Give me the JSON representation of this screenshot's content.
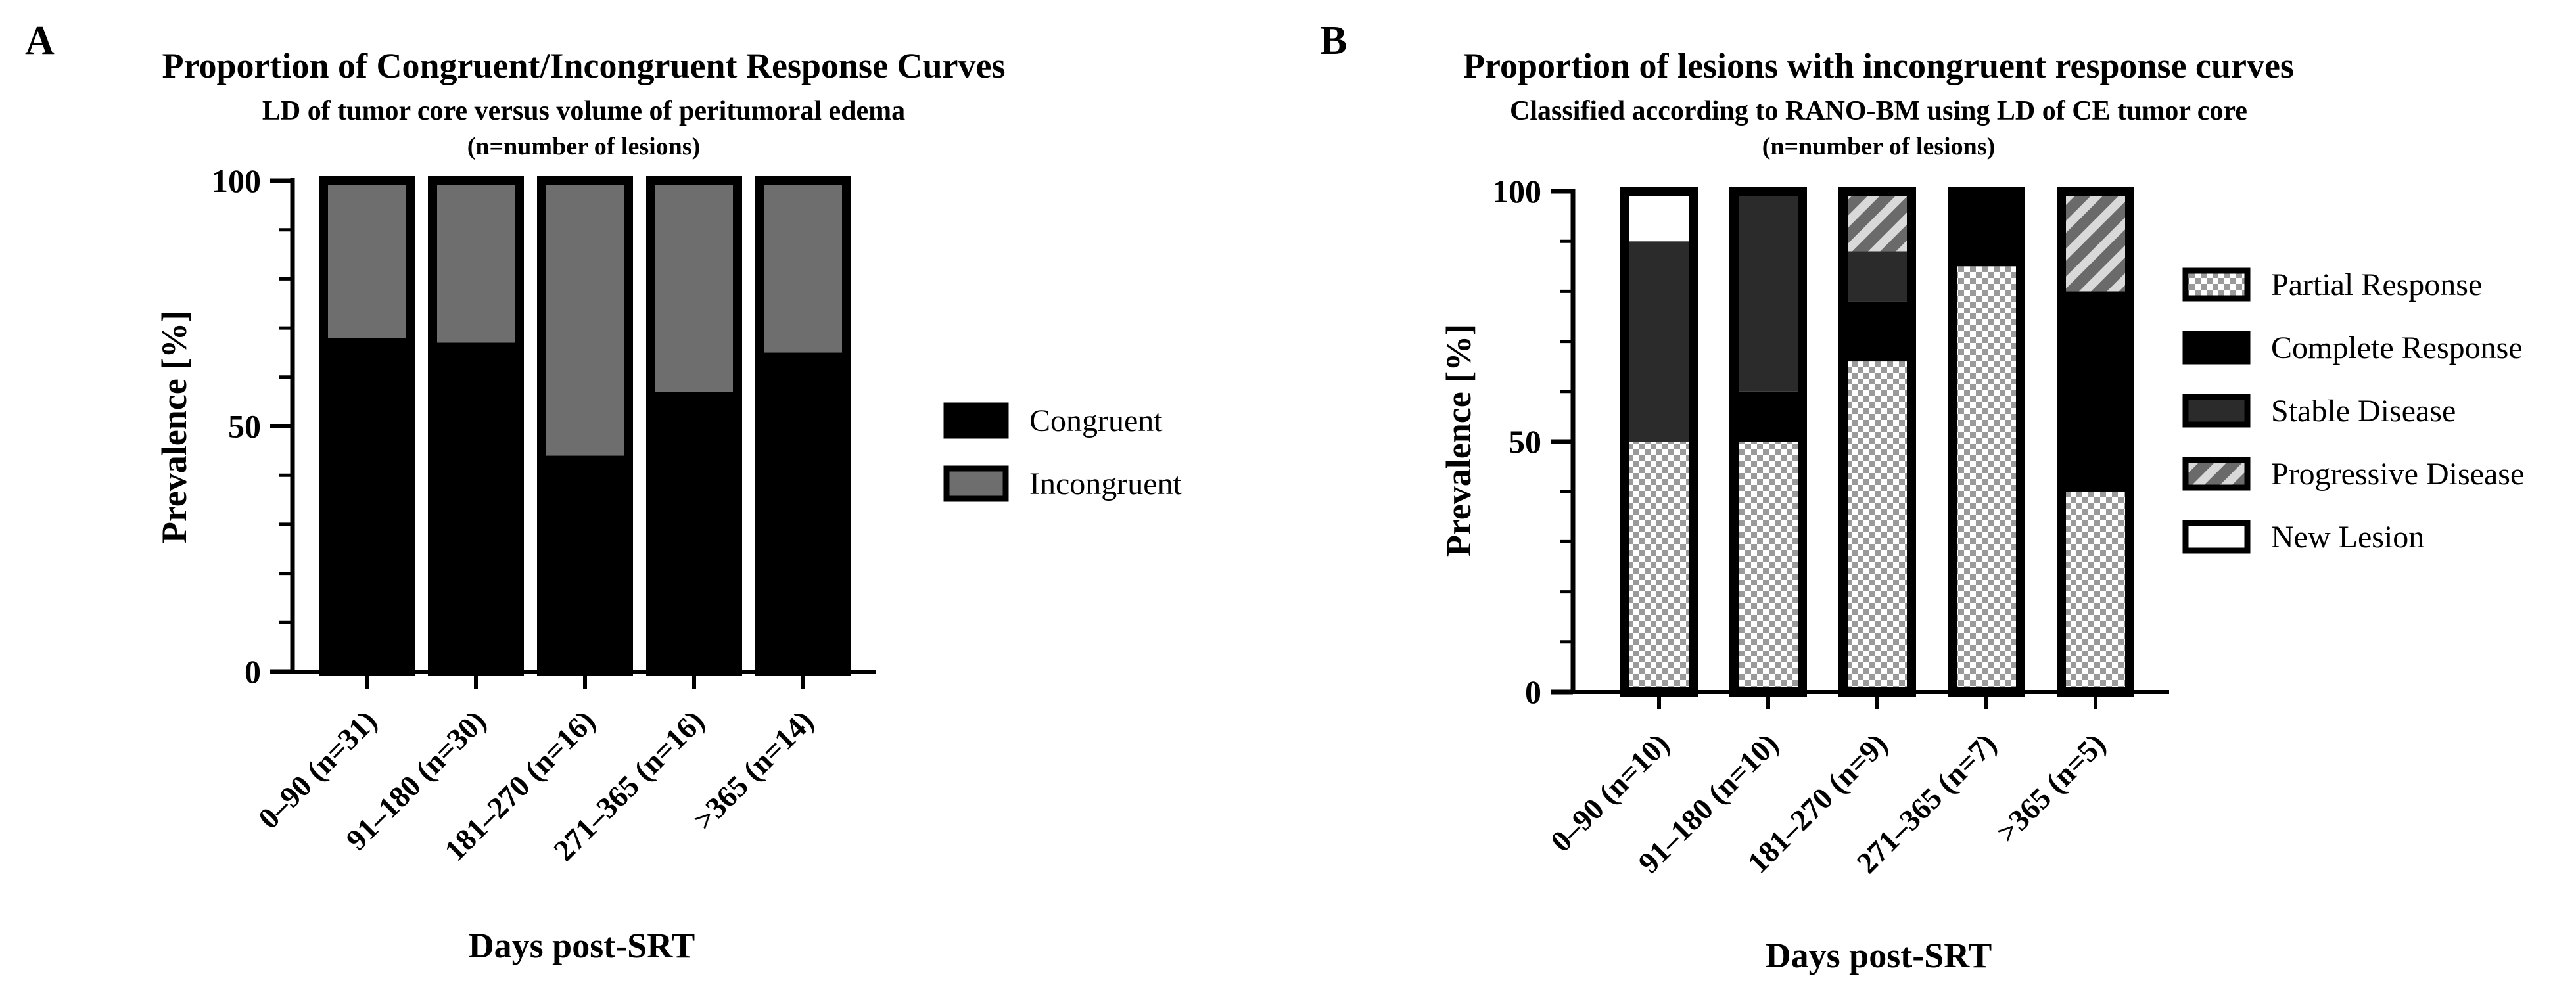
{
  "chart_data": [
    {
      "panel": "A",
      "type": "bar",
      "stacked": true,
      "title": "Proportion of Congruent/Incongruent Response Curves",
      "subtitle": "LD of tumor core versus volume of peritumoral edema",
      "note": "(n=number of lesions)",
      "xlabel": "Days post-SRT",
      "ylabel": "Prevalence [%]",
      "ylim": [
        0,
        100
      ],
      "yticks": [
        0,
        50,
        100
      ],
      "legend_position": "right",
      "categories": [
        "0–90 (n=31)",
        "91–180 (n=30)",
        "181–270 (n=16)",
        "271–365 (n=16)",
        ">365 (n=14)"
      ],
      "series": [
        {
          "name": "Congruent",
          "color": "#000000",
          "pattern": "solid",
          "values": [
            68,
            67,
            44,
            57,
            65
          ]
        },
        {
          "name": "Incongruent",
          "color": "#6e6e6e",
          "pattern": "solid",
          "values": [
            32,
            33,
            56,
            43,
            35
          ]
        }
      ]
    },
    {
      "panel": "B",
      "type": "bar",
      "stacked": true,
      "title": "Proportion of lesions with incongruent response curves",
      "subtitle": "Classified according to RANO-BM using LD of CE tumor core",
      "note": "(n=number of lesions)",
      "xlabel": "Days post-SRT",
      "ylabel": "Prevalence [%]",
      "ylim": [
        0,
        100
      ],
      "yticks": [
        0,
        50,
        100
      ],
      "legend_position": "right",
      "categories": [
        "0–90 (n=10)",
        "91–180 (n=10)",
        "181–270 (n=9)",
        "271–365 (n=7)",
        ">365 (n=5)"
      ],
      "series": [
        {
          "name": "Partial Response",
          "color": "#cfcfcf",
          "pattern": "checker",
          "values": [
            50,
            50,
            66,
            85,
            40
          ]
        },
        {
          "name": "Complete Response",
          "color": "#000000",
          "pattern": "solid",
          "values": [
            0,
            10,
            12,
            15,
            40
          ]
        },
        {
          "name": "Stable Disease",
          "color": "#2b2b2b",
          "pattern": "solid",
          "values": [
            40,
            40,
            10,
            0,
            0
          ]
        },
        {
          "name": "Progressive Disease",
          "color": "#8a8a8a",
          "pattern": "hatch",
          "values": [
            0,
            0,
            12,
            0,
            20
          ]
        },
        {
          "name": "New Lesion",
          "color": "#ffffff",
          "pattern": "solid",
          "values": [
            10,
            0,
            0,
            0,
            0
          ]
        }
      ]
    }
  ]
}
